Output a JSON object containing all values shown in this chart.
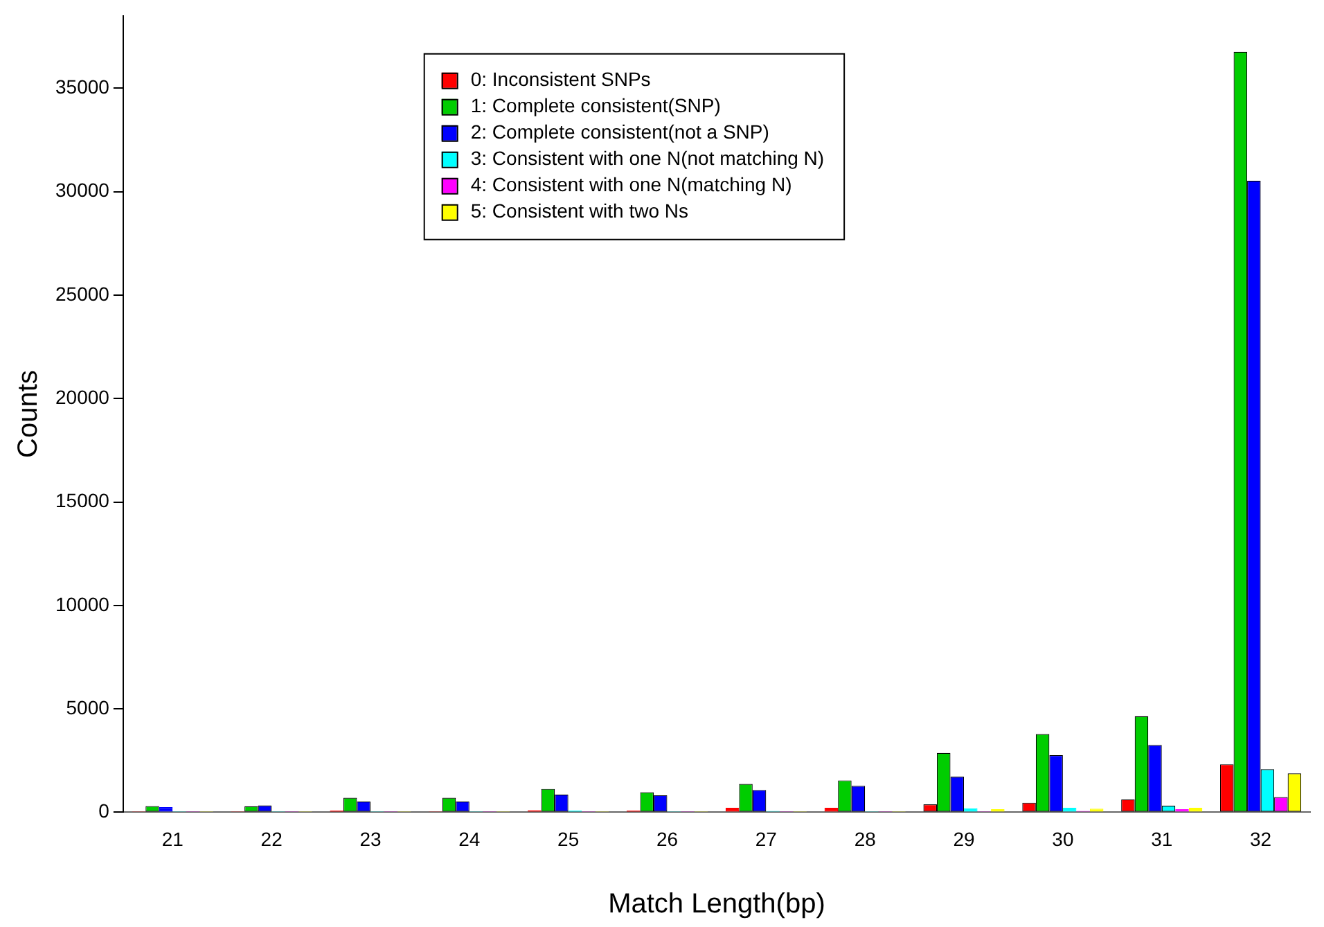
{
  "chart_data": {
    "type": "bar",
    "xlabel": "Match Length(bp)",
    "ylabel": "Counts",
    "categories": [
      "21",
      "22",
      "23",
      "24",
      "25",
      "26",
      "27",
      "28",
      "29",
      "30",
      "31",
      "32"
    ],
    "series": [
      {
        "name": "0: Inconsistent SNPs",
        "color": "#ff0000",
        "values": [
          50,
          50,
          80,
          50,
          100,
          80,
          220,
          220,
          380,
          460,
          620,
          2320
        ]
      },
      {
        "name": "1: Complete consistent(SNP)",
        "color": "#00cd00",
        "values": [
          300,
          290,
          700,
          700,
          1130,
          970,
          1370,
          1540,
          2870,
          3780,
          4640,
          36760
        ]
      },
      {
        "name": "2: Complete consistent(not a SNP)",
        "color": "#0000ff",
        "values": [
          250,
          330,
          520,
          520,
          860,
          820,
          1080,
          1280,
          1720,
          2760,
          3250,
          30530
        ]
      },
      {
        "name": "3: Consistent with one N(not matching N)",
        "color": "#00ffff",
        "values": [
          50,
          50,
          50,
          50,
          80,
          50,
          60,
          50,
          200,
          220,
          320,
          2080
        ]
      },
      {
        "name": "4: Consistent with one N(matching N)",
        "color": "#ff00ff",
        "values": [
          50,
          50,
          50,
          50,
          50,
          50,
          50,
          50,
          50,
          60,
          150,
          730
        ]
      },
      {
        "name": "5: Consistent with two Ns",
        "color": "#ffff00",
        "values": [
          50,
          50,
          50,
          50,
          50,
          50,
          50,
          50,
          150,
          170,
          220,
          1880
        ]
      }
    ],
    "ylim": [
      0,
      38500
    ],
    "yticks": [
      0,
      5000,
      10000,
      15000,
      20000,
      25000,
      30000,
      35000
    ],
    "grid": false,
    "legend": "top"
  }
}
